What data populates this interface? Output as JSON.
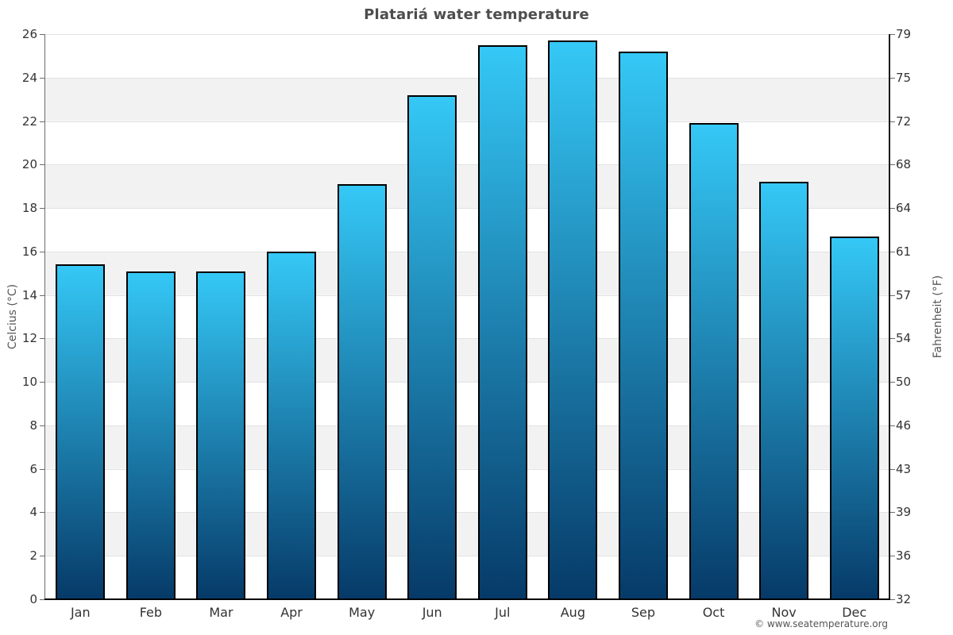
{
  "title": "Platariá water temperature",
  "credit": "© www.seatemperature.org",
  "chart_data": {
    "type": "bar",
    "title": "Platariá water temperature",
    "categories": [
      "Jan",
      "Feb",
      "Mar",
      "Apr",
      "May",
      "Jun",
      "Jul",
      "Aug",
      "Sep",
      "Oct",
      "Nov",
      "Dec"
    ],
    "values": [
      15.4,
      15.1,
      15.1,
      16.0,
      19.1,
      23.2,
      25.5,
      25.7,
      25.2,
      21.9,
      19.2,
      16.7
    ],
    "unit": "°C",
    "ylabel_left": "Celcius (°C)",
    "ylabel_right": "Fahrenheit (°F)",
    "ylim": [
      0,
      26
    ],
    "ytick_step": 2,
    "yticks_celsius": [
      0,
      2,
      4,
      6,
      8,
      10,
      12,
      14,
      16,
      18,
      20,
      22,
      24,
      26
    ],
    "yticks_fahrenheit": [
      32,
      36,
      39,
      43,
      46,
      50,
      54,
      57,
      61,
      64,
      68,
      72,
      75,
      79
    ],
    "grid": "horizontal lines every 2°C with alternating white/light-gray bands",
    "legend": "none",
    "colors": {
      "bar_gradient_top": "#35c8f6",
      "bar_gradient_bottom": "#063a68",
      "bar_border": "#000000",
      "band_gray": "#f2f2f2",
      "gridline": "#e2e2e2",
      "title_text": "#4d4d4d",
      "tick_text": "#333333"
    }
  }
}
